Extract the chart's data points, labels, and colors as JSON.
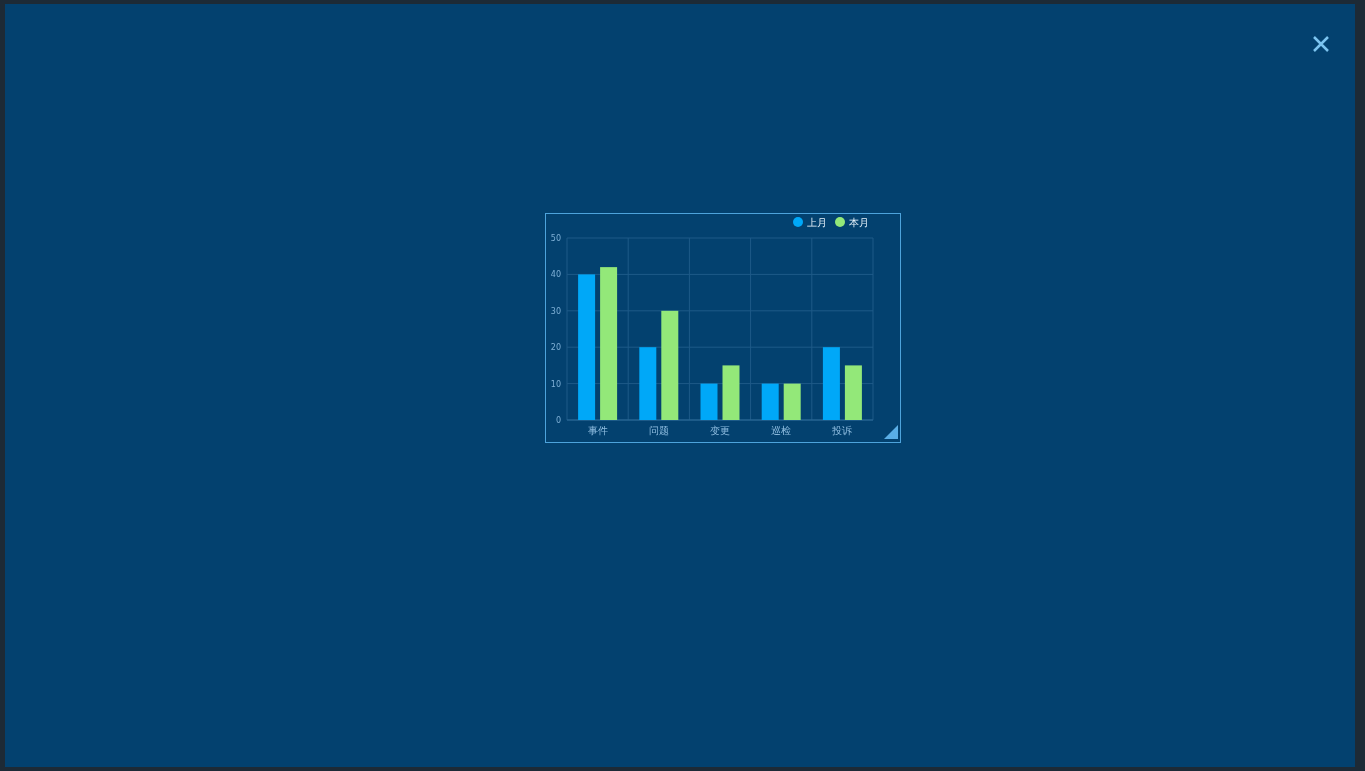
{
  "chart_data": {
    "type": "bar",
    "categories": [
      "事件",
      "问题",
      "变更",
      "巡检",
      "投诉"
    ],
    "series": [
      {
        "name": "上月",
        "color": "#00a8f8",
        "values": [
          40,
          20,
          10,
          10,
          20
        ]
      },
      {
        "name": "本月",
        "color": "#93e879",
        "values": [
          42,
          30,
          15,
          10,
          15
        ]
      }
    ],
    "ylim": [
      0,
      50
    ],
    "yticks": [
      0,
      10,
      20,
      30,
      40,
      50
    ],
    "grid": true,
    "legend": "top right"
  }
}
